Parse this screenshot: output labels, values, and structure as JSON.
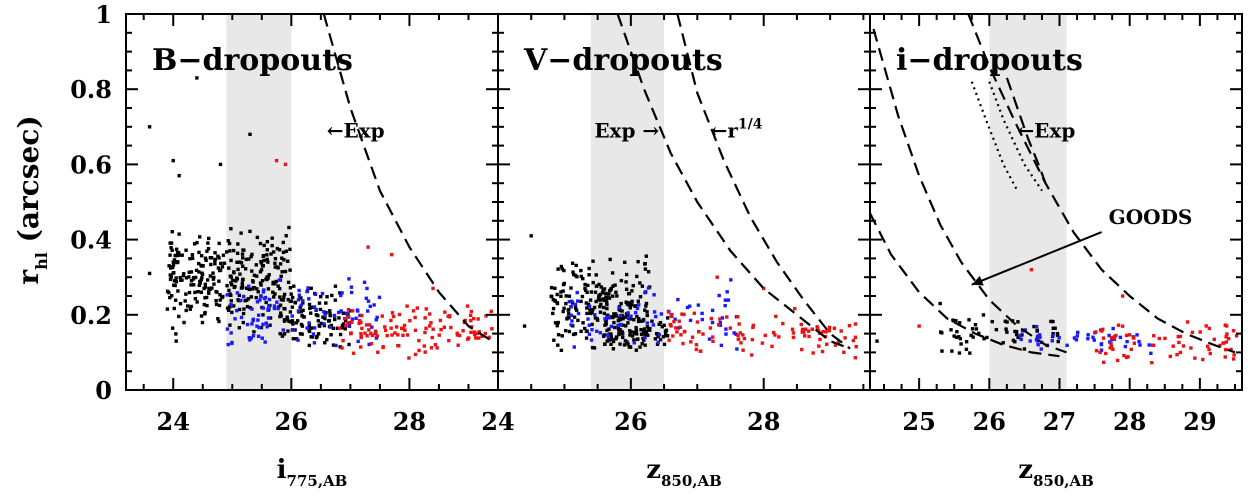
{
  "chart_data": {
    "type": "scatter",
    "ylabel": {
      "main": "r",
      "sub": "hl",
      "rest": " (arcsec)"
    },
    "ylim": [
      0,
      1
    ],
    "yticks": [
      0,
      0.2,
      0.4,
      0.6,
      0.8,
      1
    ],
    "ytick_labels": [
      "0",
      "0.2",
      "0.4",
      "0.6",
      "0.8",
      "1"
    ],
    "colors": {
      "black": "#000000",
      "blue": "#1a1aff",
      "red": "#ee1111",
      "band": "#e8e8e8"
    },
    "panels": [
      {
        "title": "B−dropouts",
        "xlabel": {
          "main": "i",
          "sub": "775,AB"
        },
        "xlim": [
          23.2,
          29.5
        ],
        "xticks": [
          24,
          26,
          28
        ],
        "xtick_labels": [
          "24",
          "26",
          "28"
        ],
        "band": [
          24.9,
          26.0
        ],
        "curves": [
          {
            "style": "dashed",
            "points": [
              [
                26.55,
                1.0
              ],
              [
                27.0,
                0.75
              ],
              [
                27.5,
                0.53
              ],
              [
                28.0,
                0.38
              ],
              [
                28.5,
                0.26
              ],
              [
                29.0,
                0.17
              ],
              [
                29.4,
                0.13
              ]
            ]
          }
        ],
        "annotations": [
          {
            "text": "←Exp",
            "x": 26.6,
            "y": 0.69
          }
        ],
        "clusters": [
          {
            "color": "black",
            "x": [
              23.9,
              26.0
            ],
            "y": [
              0.14,
              0.44
            ],
            "n": 320,
            "seed": 11
          },
          {
            "color": "black",
            "x": [
              25.8,
              27.0
            ],
            "y": [
              0.1,
              0.28
            ],
            "n": 120,
            "seed": 12
          },
          {
            "color": "blue",
            "x": [
              24.9,
              27.5
            ],
            "y": [
              0.1,
              0.3
            ],
            "n": 110,
            "seed": 13
          },
          {
            "color": "red",
            "x": [
              26.8,
              29.4
            ],
            "y": [
              0.08,
              0.24
            ],
            "n": 120,
            "seed": 14
          }
        ],
        "outliers": [
          {
            "color": "black",
            "x": 23.6,
            "y": 0.7
          },
          {
            "color": "black",
            "x": 24.4,
            "y": 0.83
          },
          {
            "color": "black",
            "x": 25.3,
            "y": 0.68
          },
          {
            "color": "black",
            "x": 24.0,
            "y": 0.61
          },
          {
            "color": "black",
            "x": 24.1,
            "y": 0.57
          },
          {
            "color": "black",
            "x": 24.8,
            "y": 0.6
          },
          {
            "color": "black",
            "x": 23.6,
            "y": 0.31
          },
          {
            "color": "black",
            "x": 24.05,
            "y": 0.13
          },
          {
            "color": "red",
            "x": 25.75,
            "y": 0.61
          },
          {
            "color": "red",
            "x": 25.9,
            "y": 0.6
          },
          {
            "color": "red",
            "x": 27.3,
            "y": 0.38
          },
          {
            "color": "red",
            "x": 27.7,
            "y": 0.36
          },
          {
            "color": "red",
            "x": 28.4,
            "y": 0.27
          }
        ]
      },
      {
        "title": "V−dropouts",
        "xlabel": {
          "main": "z",
          "sub": "850,AB"
        },
        "xlim": [
          24.0,
          29.6
        ],
        "xticks": [
          24,
          26,
          28
        ],
        "xtick_labels": [
          "24",
          "26",
          "28"
        ],
        "band": [
          25.4,
          26.5
        ],
        "curves": [
          {
            "style": "dashed",
            "points": [
              [
                25.8,
                1.0
              ],
              [
                26.2,
                0.8
              ],
              [
                26.6,
                0.63
              ],
              [
                27.0,
                0.5
              ],
              [
                27.5,
                0.37
              ],
              [
                28.0,
                0.27
              ],
              [
                28.5,
                0.2
              ],
              [
                29.0,
                0.13
              ],
              [
                29.3,
                0.11
              ]
            ]
          },
          {
            "style": "dashed",
            "points": [
              [
                26.7,
                1.0
              ],
              [
                27.0,
                0.79
              ],
              [
                27.4,
                0.61
              ],
              [
                27.8,
                0.46
              ],
              [
                28.2,
                0.34
              ],
              [
                28.6,
                0.24
              ],
              [
                29.0,
                0.15
              ],
              [
                29.3,
                0.11
              ]
            ]
          }
        ],
        "annotations": [
          {
            "text": "Exp →",
            "x": 25.45,
            "y": 0.69
          },
          {
            "text": "←r",
            "x": 27.2,
            "y": 0.69,
            "sup": "1/4"
          }
        ],
        "clusters": [
          {
            "color": "black",
            "x": [
              24.8,
              26.3
            ],
            "y": [
              0.1,
              0.36
            ],
            "n": 230,
            "seed": 21
          },
          {
            "color": "black",
            "x": [
              25.6,
              26.6
            ],
            "y": [
              0.1,
              0.2
            ],
            "n": 80,
            "seed": 22
          },
          {
            "color": "blue",
            "x": [
              25.0,
              27.6
            ],
            "y": [
              0.1,
              0.3
            ],
            "n": 80,
            "seed": 23
          },
          {
            "color": "red",
            "x": [
              26.5,
              29.5
            ],
            "y": [
              0.08,
              0.22
            ],
            "n": 100,
            "seed": 24
          }
        ],
        "outliers": [
          {
            "color": "black",
            "x": 24.5,
            "y": 0.41
          },
          {
            "color": "black",
            "x": 24.4,
            "y": 0.17
          },
          {
            "color": "red",
            "x": 27.3,
            "y": 0.3
          },
          {
            "color": "red",
            "x": 28.0,
            "y": 0.27
          }
        ]
      },
      {
        "title": "i−dropouts",
        "xlabel": {
          "main": "z",
          "sub": "850,AB"
        },
        "xlim": [
          24.3,
          29.6
        ],
        "xticks": [
          25,
          26,
          27,
          28,
          29
        ],
        "xtick_labels": [
          "25",
          "26",
          "27",
          "28",
          "29"
        ],
        "band": [
          26.0,
          27.1
        ],
        "curves": [
          {
            "style": "dashed",
            "points": [
              [
                24.35,
                0.96
              ],
              [
                24.7,
                0.73
              ],
              [
                25.0,
                0.57
              ],
              [
                25.3,
                0.44
              ],
              [
                25.6,
                0.34
              ],
              [
                26.0,
                0.24
              ],
              [
                26.4,
                0.17
              ],
              [
                26.8,
                0.12
              ],
              [
                27.1,
                0.1
              ]
            ]
          },
          {
            "style": "dashed",
            "points": [
              [
                24.3,
                0.47
              ],
              [
                24.6,
                0.36
              ],
              [
                25.0,
                0.26
              ],
              [
                25.4,
                0.19
              ],
              [
                25.8,
                0.15
              ],
              [
                26.2,
                0.12
              ],
              [
                26.6,
                0.1
              ],
              [
                27.0,
                0.09
              ]
            ]
          },
          {
            "style": "dashed",
            "points": [
              [
                25.7,
                1.0
              ],
              [
                26.0,
                0.86
              ],
              [
                26.4,
                0.7
              ],
              [
                26.8,
                0.55
              ],
              [
                27.2,
                0.42
              ],
              [
                27.6,
                0.32
              ],
              [
                28.0,
                0.25
              ],
              [
                28.4,
                0.19
              ],
              [
                28.8,
                0.15
              ],
              [
                29.2,
                0.12
              ],
              [
                29.5,
                0.1
              ]
            ]
          },
          {
            "style": "dashed",
            "points": [
              [
                26.25,
                0.83
              ],
              [
                26.4,
                0.75
              ],
              [
                26.55,
                0.67
              ],
              [
                26.7,
                0.6
              ],
              [
                26.8,
                0.55
              ]
            ]
          },
          {
            "style": "dotted",
            "points": [
              [
                25.75,
                0.82
              ],
              [
                25.95,
                0.72
              ],
              [
                26.2,
                0.6
              ],
              [
                26.4,
                0.53
              ]
            ]
          },
          {
            "style": "dotted",
            "points": [
              [
                26.0,
                0.82
              ],
              [
                26.2,
                0.72
              ],
              [
                26.5,
                0.6
              ],
              [
                26.75,
                0.53
              ]
            ]
          }
        ],
        "annotations": [
          {
            "text": "←Exp",
            "x": 26.4,
            "y": 0.69
          },
          {
            "text": "GOODS",
            "x": 27.7,
            "y": 0.46
          }
        ],
        "arrow": {
          "from": [
            27.6,
            0.42
          ],
          "to": [
            25.75,
            0.28
          ]
        },
        "clusters": [
          {
            "color": "black",
            "x": [
              25.3,
              27.0
            ],
            "y": [
              0.09,
              0.21
            ],
            "n": 60,
            "seed": 31
          },
          {
            "color": "blue",
            "x": [
              26.4,
              28.4
            ],
            "y": [
              0.09,
              0.18
            ],
            "n": 45,
            "seed": 32
          },
          {
            "color": "red",
            "x": [
              27.5,
              29.6
            ],
            "y": [
              0.06,
              0.2
            ],
            "n": 70,
            "seed": 33
          }
        ],
        "outliers": [
          {
            "color": "black",
            "x": 24.4,
            "y": 0.13
          },
          {
            "color": "black",
            "x": 25.3,
            "y": 0.23
          },
          {
            "color": "red",
            "x": 26.6,
            "y": 0.32
          },
          {
            "color": "red",
            "x": 27.9,
            "y": 0.25
          },
          {
            "color": "red",
            "x": 25.0,
            "y": 0.17
          }
        ]
      }
    ]
  }
}
